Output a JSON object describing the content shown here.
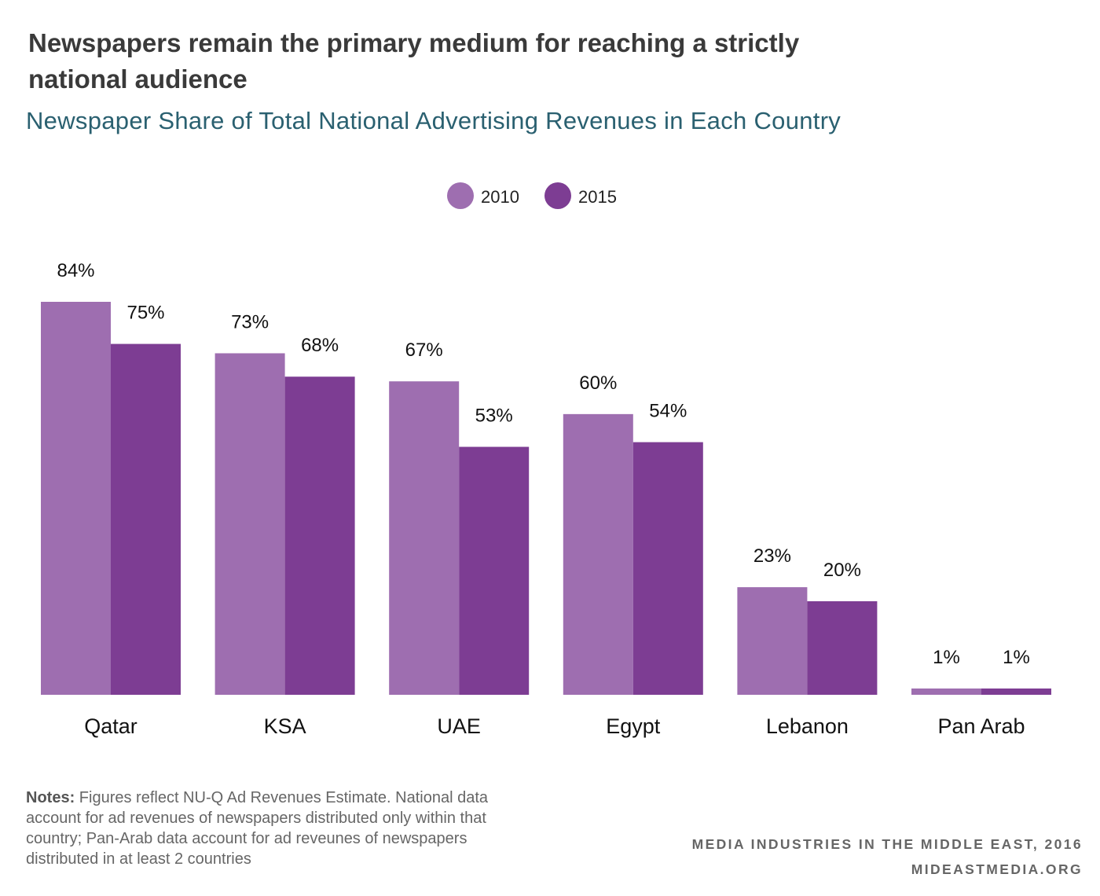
{
  "title": "Newspapers remain the primary medium for reaching a strictly national audience",
  "subtitle": "Newspaper Share of Total National Advertising Revenues in Each Country",
  "notes": {
    "label": "Notes:",
    "text": " Figures reflect NU-Q Ad Revenues Estimate. National data account for ad revenues of newspapers distributed only within that country; Pan-Arab data account for ad reveunes of newspapers distributed in at least 2 countries"
  },
  "credit": {
    "line1": "MEDIA INDUSTRIES IN THE MIDDLE EAST, 2016",
    "line2": "MIDEASTMEDIA.ORG"
  },
  "colors": {
    "series_2010": "#9e6eb0",
    "series_2015": "#7d3d93"
  },
  "chart_data": {
    "type": "bar",
    "categories": [
      "Qatar",
      "KSA",
      "UAE",
      "Egypt",
      "Lebanon",
      "Pan Arab"
    ],
    "series": [
      {
        "name": "2010",
        "values": [
          84,
          73,
          67,
          60,
          23,
          1
        ],
        "labels": [
          "84%",
          "73%",
          "67%",
          "60%",
          "23%",
          "1%"
        ]
      },
      {
        "name": "2015",
        "values": [
          75,
          68,
          53,
          54,
          20,
          1
        ],
        "labels": [
          "75%",
          "68%",
          "53%",
          "54%",
          "20%",
          "1%"
        ]
      }
    ],
    "legend_position": "top-center",
    "grid": false,
    "ylim": [
      0,
      84
    ]
  }
}
